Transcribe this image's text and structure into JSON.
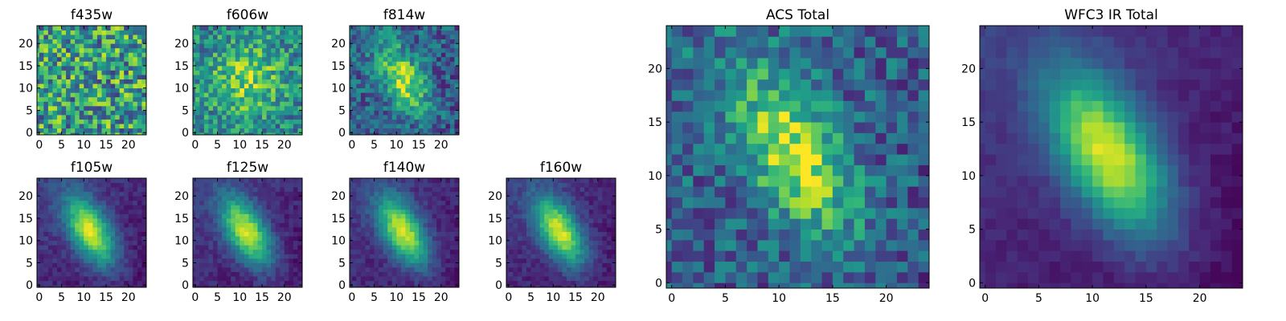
{
  "figure": {
    "description_free": true
  },
  "chart_data": [
    {
      "type": "heatmap",
      "title": "f435w",
      "colormap": "viridis",
      "x_range": [
        0,
        24
      ],
      "y_range": [
        0,
        24
      ],
      "xticks": [
        0,
        5,
        10,
        15,
        20
      ],
      "yticks": [
        0,
        5,
        10,
        15,
        20
      ],
      "pattern": "noise"
    },
    {
      "type": "heatmap",
      "title": "f606w",
      "colormap": "viridis",
      "x_range": [
        0,
        24
      ],
      "y_range": [
        0,
        24
      ],
      "xticks": [
        0,
        5,
        10,
        15,
        20
      ],
      "yticks": [
        0,
        5,
        10,
        15,
        20
      ],
      "pattern": "diffuse"
    },
    {
      "type": "heatmap",
      "title": "f814w",
      "colormap": "viridis",
      "x_range": [
        0,
        24
      ],
      "y_range": [
        0,
        24
      ],
      "xticks": [
        0,
        5,
        10,
        15,
        20
      ],
      "yticks": [
        0,
        5,
        10,
        15,
        20
      ],
      "pattern": "elongated-noisy"
    },
    {
      "type": "heatmap",
      "title": "f105w",
      "colormap": "viridis",
      "x_range": [
        0,
        24
      ],
      "y_range": [
        0,
        24
      ],
      "xticks": [
        0,
        5,
        10,
        15,
        20
      ],
      "yticks": [
        0,
        5,
        10,
        15,
        20
      ],
      "pattern": "elongated"
    },
    {
      "type": "heatmap",
      "title": "f125w",
      "colormap": "viridis",
      "x_range": [
        0,
        24
      ],
      "y_range": [
        0,
        24
      ],
      "xticks": [
        0,
        5,
        10,
        15,
        20
      ],
      "yticks": [
        0,
        5,
        10,
        15,
        20
      ],
      "pattern": "elongated"
    },
    {
      "type": "heatmap",
      "title": "f140w",
      "colormap": "viridis",
      "x_range": [
        0,
        24
      ],
      "y_range": [
        0,
        24
      ],
      "xticks": [
        0,
        5,
        10,
        15,
        20
      ],
      "yticks": [
        0,
        5,
        10,
        15,
        20
      ],
      "pattern": "elongated"
    },
    {
      "type": "heatmap",
      "title": "f160w",
      "colormap": "viridis",
      "x_range": [
        0,
        24
      ],
      "y_range": [
        0,
        24
      ],
      "xticks": [
        0,
        5,
        10,
        15,
        20
      ],
      "yticks": [
        0,
        5,
        10,
        15,
        20
      ],
      "pattern": "elongated"
    },
    {
      "type": "heatmap",
      "title": "ACS Total",
      "colormap": "viridis",
      "x_range": [
        0,
        24
      ],
      "y_range": [
        0,
        24
      ],
      "xticks": [
        0,
        5,
        10,
        15,
        20
      ],
      "yticks": [
        0,
        5,
        10,
        15,
        20
      ],
      "pattern": "elongated-noisy"
    },
    {
      "type": "heatmap",
      "title": "WFC3 IR Total",
      "colormap": "viridis",
      "x_range": [
        0,
        24
      ],
      "y_range": [
        0,
        24
      ],
      "xticks": [
        0,
        5,
        10,
        15,
        20
      ],
      "yticks": [
        0,
        5,
        10,
        15,
        20
      ],
      "pattern": "elongated-smooth"
    }
  ]
}
